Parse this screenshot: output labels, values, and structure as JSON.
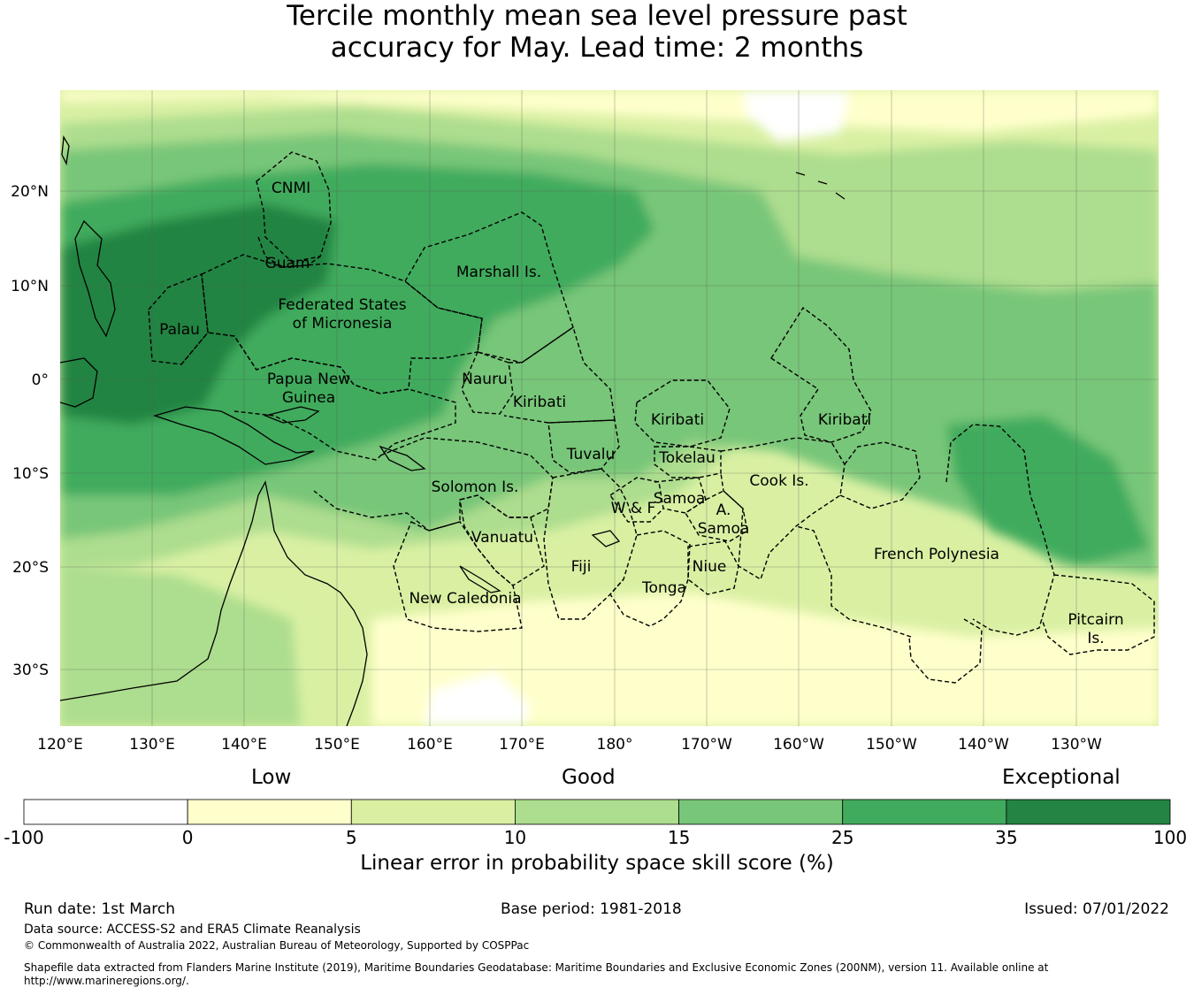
{
  "title_line1": "Tercile monthly mean sea level pressure past",
  "title_line2": "accuracy for May. Lead time: 2 months",
  "lon_ticks": [
    "120°E",
    "130°E",
    "140°E",
    "150°E",
    "160°E",
    "170°E",
    "180°",
    "170°W",
    "160°W",
    "150°W",
    "140°W",
    "130°W"
  ],
  "lat_ticks": [
    "20°N",
    "10°N",
    "0°",
    "10°S",
    "20°S",
    "30°S"
  ],
  "regions": [
    {
      "id": "cnmi",
      "label": "CNMI"
    },
    {
      "id": "guam",
      "label": "Guam"
    },
    {
      "id": "marshall",
      "label": "Marshall Is."
    },
    {
      "id": "fsm1",
      "label": "Federated States"
    },
    {
      "id": "fsm2",
      "label": "of Micronesia"
    },
    {
      "id": "palau",
      "label": "Palau"
    },
    {
      "id": "png1",
      "label": "Papua New"
    },
    {
      "id": "png2",
      "label": "Guinea"
    },
    {
      "id": "nauru",
      "label": "Nauru"
    },
    {
      "id": "kiribati_w",
      "label": "Kiribati"
    },
    {
      "id": "kiribati_c",
      "label": "Kiribati"
    },
    {
      "id": "kiribati_e",
      "label": "Kiribati"
    },
    {
      "id": "tuvalu",
      "label": "Tuvalu"
    },
    {
      "id": "tokelau",
      "label": "Tokelau"
    },
    {
      "id": "solomon",
      "label": "Solomon Is."
    },
    {
      "id": "cook",
      "label": "Cook Is."
    },
    {
      "id": "samoa",
      "label": "Samoa"
    },
    {
      "id": "wf",
      "label": "W & F"
    },
    {
      "id": "asamoa1",
      "label": "A."
    },
    {
      "id": "asamoa2",
      "label": "Samoa"
    },
    {
      "id": "vanuatu",
      "label": "Vanuatu"
    },
    {
      "id": "fiji",
      "label": "Fiji"
    },
    {
      "id": "niue",
      "label": "Niue"
    },
    {
      "id": "tonga",
      "label": "Tonga"
    },
    {
      "id": "frpoly",
      "label": "French Polynesia"
    },
    {
      "id": "newcal",
      "label": "New Caledonia"
    },
    {
      "id": "pitcairn1",
      "label": "Pitcairn"
    },
    {
      "id": "pitcairn2",
      "label": "Is."
    }
  ],
  "colorbar": {
    "header_low": "Low",
    "header_good": "Good",
    "header_exceptional": "Exceptional",
    "tick_labels": [
      "-100",
      "0",
      "5",
      "10",
      "15",
      "25",
      "35",
      "100"
    ],
    "colors": [
      "#ffffff",
      "#ffffcc",
      "#d9f0a3",
      "#addd8e",
      "#78c679",
      "#41ab5d",
      "#238443"
    ],
    "label": "Linear error in probability space skill score (%)"
  },
  "footer": {
    "run_date": "Run date: 1st March",
    "base_period": "Base period: 1981-2018",
    "issued": "Issued: 07/01/2022",
    "data_source": "Data source: ACCESS-S2 and ERA5 Climate Reanalysis",
    "copyright": "© Commonwealth of Australia 2022, Australian Bureau of Meteorology, Supported by COSPPac",
    "shapefile_line1": "Shapefile data extracted from Flanders Marine Institute (2019), Maritime Boundaries Geodatabase: Maritime Boundaries and Exclusive Economic Zones (200NM), version 11. Available online at",
    "shapefile_line2": "http://www.marineregions.org/."
  }
}
